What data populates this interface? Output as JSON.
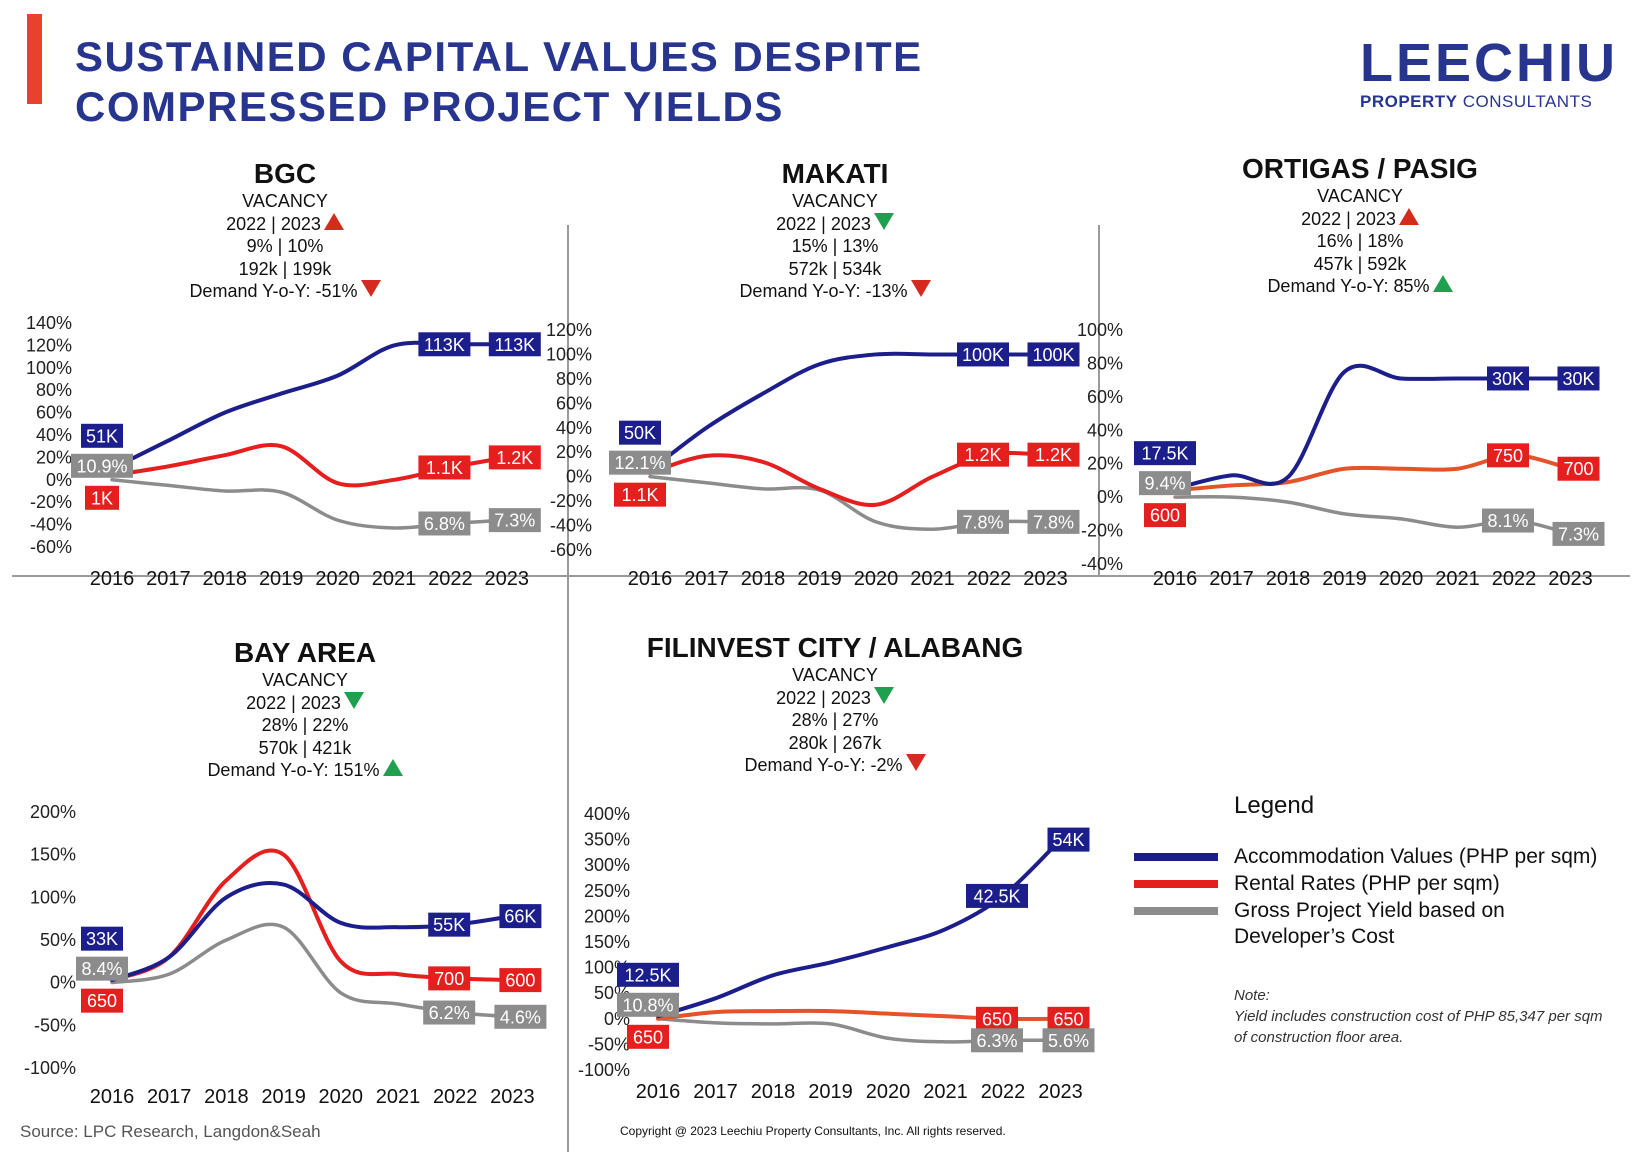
{
  "title_line1": "SUSTAINED CAPITAL VALUES DESPITE",
  "title_line2": "COMPRESSED PROJECT YIELDS",
  "logo": {
    "main": "LEECHIU",
    "sub_bold": "PROPERTY",
    "sub_rest": " CONSULTANTS"
  },
  "colors": {
    "accommodation": "#1c1e8c",
    "rental": "#e51e1e",
    "rental_alt": "#e5532a",
    "yield": "#8c8c8c",
    "title": "#27358f",
    "accent": "#e8412c"
  },
  "panels": [
    {
      "name": "BGC",
      "vacancy_label": "VACANCY",
      "years": "2022 | 2023",
      "vacancy_trend": "up",
      "vacancy_pct": "9% |  10%",
      "vacancy_sqm": "192k | 199k",
      "demand": "Demand Y-o-Y: -51%",
      "demand_trend": "down"
    },
    {
      "name": "MAKATI",
      "vacancy_label": "VACANCY",
      "years": "2022 | 2023",
      "vacancy_trend": "down",
      "vacancy_pct": "15% |  13%",
      "vacancy_sqm": "572k | 534k",
      "demand": "Demand Y-o-Y: -13%",
      "demand_trend": "down"
    },
    {
      "name": "ORTIGAS  / PASIG",
      "vacancy_label": "VACANCY",
      "years": "2022 | 2023",
      "vacancy_trend": "up",
      "vacancy_pct": "16% |  18%",
      "vacancy_sqm": "457k | 592k",
      "demand": "Demand Y-o-Y: 85%",
      "demand_trend": "up"
    },
    {
      "name": "BAY AREA",
      "vacancy_label": "VACANCY",
      "years": "2022 | 2023",
      "vacancy_trend": "down",
      "vacancy_pct": "28% |  22%",
      "vacancy_sqm": "570k | 421k",
      "demand": "Demand Y-o-Y: 151%",
      "demand_trend": "up"
    },
    {
      "name": "FILINVEST CITY / ALABANG",
      "vacancy_label": "VACANCY",
      "years": "2022 | 2023",
      "vacancy_trend": "down",
      "vacancy_pct": "28% |  27%",
      "vacancy_sqm": "280k | 267k",
      "demand": "Demand Y-o-Y: -2%",
      "demand_trend": "down"
    }
  ],
  "chart_data": [
    {
      "type": "line",
      "title": "BGC",
      "x": [
        "2016",
        "2017",
        "2018",
        "2019",
        "2020",
        "2021",
        "2022",
        "2023"
      ],
      "y_ticks": [
        "140%",
        "120%",
        "100%",
        "80%",
        "60%",
        "40%",
        "20%",
        "0%",
        "-20%",
        "-40%",
        "-60%"
      ],
      "ylim": [
        -60,
        140
      ],
      "series": [
        {
          "name": "Accommodation Values (PHP per sqm)",
          "values": [
            10,
            35,
            60,
            77,
            93,
            120,
            121,
            121
          ],
          "start_label": "51K",
          "end_labels": [
            "113K",
            "113K"
          ]
        },
        {
          "name": "Rental Rates (PHP per sqm)",
          "values": [
            4,
            12,
            22,
            30,
            -3,
            0,
            11,
            20
          ],
          "start_label": "1K",
          "end_labels": [
            "1.1K",
            "1.2K"
          ]
        },
        {
          "name": "Gross Project Yield based on Developer's Cost",
          "values": [
            0,
            -5,
            -10,
            -11,
            -36,
            -43,
            -39,
            -36
          ],
          "start_label": "10.9%",
          "end_labels": [
            "6.8%",
            "7.3%"
          ]
        }
      ]
    },
    {
      "type": "line",
      "title": "MAKATI",
      "x": [
        "2016",
        "2017",
        "2018",
        "2019",
        "2020",
        "2021",
        "2022",
        "2023"
      ],
      "y_ticks": [
        "120%",
        "100%",
        "80%",
        "60%",
        "40%",
        "20%",
        "0%",
        "-20%",
        "-40%",
        "-60%"
      ],
      "ylim": [
        -60,
        120
      ],
      "series": [
        {
          "name": "Accommodation Values (PHP per sqm)",
          "values": [
            5,
            40,
            68,
            92,
            100,
            100,
            100,
            100
          ],
          "start_label": "50K",
          "end_labels": [
            "100K",
            "100K"
          ]
        },
        {
          "name": "Rental Rates (PHP per sqm)",
          "values": [
            3,
            17,
            12,
            -10,
            -23,
            0,
            18,
            18
          ],
          "start_label": "1.1K",
          "end_labels": [
            "1.2K",
            "1.2K"
          ]
        },
        {
          "name": "Gross Project Yield based on Developer's Cost",
          "values": [
            0,
            -5,
            -10,
            -11,
            -37,
            -43,
            -37,
            -37
          ],
          "start_label": "12.1%",
          "end_labels": [
            "7.8%",
            "7.8%"
          ]
        }
      ]
    },
    {
      "type": "line",
      "title": "ORTIGAS  / PASIG",
      "x": [
        "2016",
        "2017",
        "2018",
        "2019",
        "2020",
        "2021",
        "2022",
        "2023"
      ],
      "y_ticks": [
        "100%",
        "80%",
        "60%",
        "40%",
        "20%",
        "0%",
        "-20%",
        "-40%"
      ],
      "ylim": [
        -40,
        100
      ],
      "series": [
        {
          "name": "Accommodation Values (PHP per sqm)",
          "values": [
            5,
            13,
            12,
            75,
            71,
            71,
            71,
            71
          ],
          "start_label": "17.5K",
          "end_labels": [
            "30K",
            "30K"
          ]
        },
        {
          "name": "Rental Rates (PHP per sqm)",
          "values": [
            4,
            7,
            9,
            17,
            17,
            17,
            25,
            17
          ],
          "start_label": "600",
          "end_labels": [
            "750",
            "700"
          ]
        },
        {
          "name": "Gross Project Yield based on Developer's Cost",
          "values": [
            0,
            0,
            -3,
            -10,
            -13,
            -18,
            -14,
            -22
          ],
          "start_label": "9.4%",
          "end_labels": [
            "8.1%",
            "7.3%"
          ]
        }
      ]
    },
    {
      "type": "line",
      "title": "BAY AREA",
      "x": [
        "2016",
        "2017",
        "2018",
        "2019",
        "2020",
        "2021",
        "2022",
        "2023"
      ],
      "y_ticks": [
        "200%",
        "150%",
        "100%",
        "50%",
        "0%",
        "-50%",
        "-100%"
      ],
      "ylim": [
        -100,
        200
      ],
      "series": [
        {
          "name": "Accommodation Values (PHP per sqm)",
          "values": [
            3,
            30,
            100,
            115,
            70,
            65,
            68,
            78
          ],
          "start_label": "33K",
          "end_labels": [
            "55K",
            "66K"
          ]
        },
        {
          "name": "Rental Rates (PHP per sqm)",
          "values": [
            3,
            30,
            120,
            150,
            25,
            10,
            5,
            3
          ],
          "start_label": "650",
          "end_labels": [
            "700",
            "600"
          ]
        },
        {
          "name": "Gross Project Yield based on Developer's Cost",
          "values": [
            0,
            10,
            50,
            65,
            -12,
            -25,
            -35,
            -40
          ],
          "start_label": "8.4%",
          "end_labels": [
            "6.2%",
            "4.6%"
          ]
        }
      ]
    },
    {
      "type": "line",
      "title": "FILINVEST CITY / ALABANG",
      "x": [
        "2016",
        "2017",
        "2018",
        "2019",
        "2020",
        "2021",
        "2022",
        "2023"
      ],
      "y_ticks": [
        "400%",
        "350%",
        "300%",
        "250%",
        "200%",
        "150%",
        "100%",
        "50%",
        "0%",
        "-50%",
        "-100%"
      ],
      "ylim": [
        -100,
        400
      ],
      "series": [
        {
          "name": "Accommodation Values (PHP per sqm)",
          "values": [
            5,
            40,
            85,
            110,
            140,
            175,
            240,
            350
          ],
          "start_label": "12.5K",
          "end_labels": [
            "42.5K",
            "54K"
          ]
        },
        {
          "name": "Rental Rates (PHP per sqm)",
          "values": [
            0,
            13,
            15,
            15,
            10,
            5,
            0,
            0
          ],
          "start_label": "650",
          "end_labels": [
            "650",
            "650"
          ]
        },
        {
          "name": "Gross Project Yield based on Developer's Cost",
          "values": [
            0,
            -8,
            -10,
            -10,
            -38,
            -45,
            -42,
            -42
          ],
          "start_label": "10.8%",
          "end_labels": [
            "6.3%",
            "5.6%"
          ]
        }
      ]
    }
  ],
  "legend": {
    "title": "Legend",
    "items": [
      {
        "label": "Accommodation Values (PHP per sqm)",
        "color": "#1c1e8c"
      },
      {
        "label": "Rental Rates (PHP per sqm)",
        "color": "#e51e1e"
      },
      {
        "label": "Gross Project Yield based on",
        "label2": "Developer’s Cost",
        "color": "#8c8c8c"
      }
    ]
  },
  "note": {
    "heading": "Note:",
    "text": "Yield includes construction cost of PHP 85,347  per sqm of construction floor area."
  },
  "source": "Source: LPC Research, Langdon&Seah",
  "copyright": "Copyright @ 2023 Leechiu Property Consultants, Inc. All rights reserved."
}
